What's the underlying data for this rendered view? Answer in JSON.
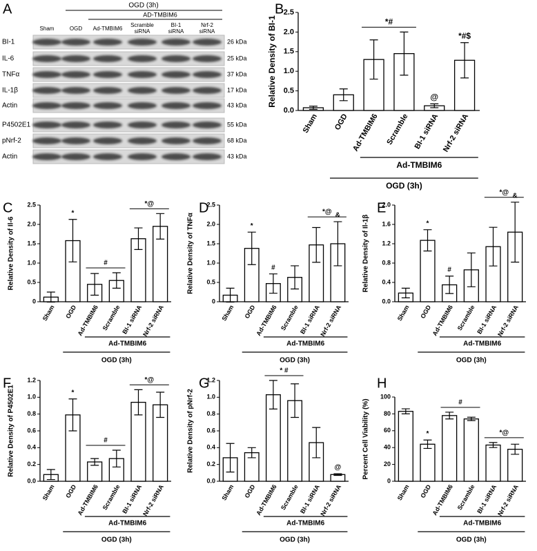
{
  "blot": {
    "panel_label": "A",
    "header": "OGD (3h)",
    "subheader": "AD-TMBIM6",
    "lanes": [
      [
        "Sham"
      ],
      [
        "OGD"
      ],
      [
        "Ad-TMBIM6"
      ],
      [
        "Scramble",
        "siRNA"
      ],
      [
        "BI-1",
        "siRNA"
      ],
      [
        "Nrf-2",
        "siRNA"
      ]
    ],
    "rows": [
      {
        "label": "BI-1",
        "size": "26 kDa"
      },
      {
        "label": "IL-6",
        "size": "25 kDa"
      },
      {
        "label": "TNFα",
        "size": "37 kDa"
      },
      {
        "label": "IL-1β",
        "size": "17 kDa"
      },
      {
        "label": "Actin",
        "size": "43 kDa"
      },
      {
        "label": "P4502E1",
        "size": "55 kDa"
      },
      {
        "label": "pNrf-2",
        "size": "68 kDa"
      },
      {
        "label": "Actin",
        "size": "43 kDa"
      }
    ]
  },
  "chart_data": [
    {
      "type": "bar",
      "panel_label": "B",
      "y_label": "Relative Density of BI-1",
      "categories": [
        "Sham",
        "OGD",
        "Ad-TMBIM6",
        "Scramble",
        "BI-1 siRNA",
        "Nrf-2 siRNA"
      ],
      "values": [
        0.07,
        0.4,
        1.3,
        1.45,
        0.12,
        1.28
      ],
      "errors": [
        0.04,
        0.15,
        0.5,
        0.55,
        0.05,
        0.45
      ],
      "ylim": [
        0,
        2.5
      ],
      "yticks": [
        {
          "value": 0,
          "label": "0.0"
        },
        0.5,
        {
          "value": 1,
          "label": "1.0"
        },
        1.5,
        {
          "value": 2,
          "label": "2.0"
        },
        2.5
      ],
      "annotations": [
        {
          "text": "*#",
          "span": [
            "Ad-TMBIM6",
            "Scramble"
          ]
        },
        {
          "text": "@",
          "span": [
            "BI-1 siRNA"
          ]
        },
        {
          "text": "*#$",
          "span": [
            "Nrf-2 siRNA"
          ]
        }
      ],
      "groups": [
        {
          "label": "Ad-TMBIM6",
          "span": [
            "Ad-TMBIM6",
            "Nrf-2 siRNA"
          ]
        },
        {
          "label": "OGD (3h)",
          "span": [
            "OGD",
            "Nrf-2 siRNA"
          ]
        }
      ]
    },
    {
      "type": "bar",
      "panel_label": "C",
      "y_label": "Relative Density of Il-6",
      "categories": [
        "Sham",
        "OGD",
        "Ad-TMBIM6",
        "Scramble",
        "BI-1 siRNA",
        "Nrf-2 siRNA"
      ],
      "values": [
        0.12,
        1.58,
        0.45,
        0.55,
        1.63,
        1.95
      ],
      "errors": [
        0.13,
        0.55,
        0.28,
        0.2,
        0.28,
        0.33
      ],
      "ylim": [
        0,
        2.5
      ],
      "yticks": [
        0,
        0.5,
        {
          "value": 1,
          "label": "1.0"
        },
        1.5,
        {
          "value": 2,
          "label": "2.0"
        },
        2.5
      ],
      "annotations": [
        {
          "text": "*",
          "span": [
            "OGD"
          ]
        },
        {
          "text": "#",
          "span": [
            "Ad-TMBIM6",
            "Scramble"
          ]
        },
        {
          "text": "*@",
          "span": [
            "BI-1 siRNA",
            "Nrf-2 siRNA"
          ]
        }
      ],
      "groups": [
        {
          "label": "Ad-TMBIM6",
          "span": [
            "Ad-TMBIM6",
            "Nrf-2 siRNA"
          ]
        },
        {
          "label": "OGD (3h)",
          "span": [
            "OGD",
            "Nrf-2 siRNA"
          ]
        }
      ]
    },
    {
      "type": "bar",
      "panel_label": "D",
      "y_label": "Relative Density of TNFα",
      "categories": [
        "Sham",
        "OGD",
        "Ad-TMBIM6",
        "Scramble",
        "BI-1 siRNA",
        "Nrf-2 siRNA"
      ],
      "values": [
        0.17,
        1.38,
        0.47,
        0.63,
        1.47,
        1.5
      ],
      "errors": [
        0.18,
        0.42,
        0.25,
        0.3,
        0.45,
        0.57
      ],
      "ylim": [
        0,
        2.5
      ],
      "yticks": [
        0,
        0.5,
        {
          "value": 1,
          "label": "1.0"
        },
        1.5,
        {
          "value": 2,
          "label": "2.0"
        },
        2.5
      ],
      "annotations": [
        {
          "text": "*",
          "span": [
            "OGD"
          ]
        },
        {
          "text": "#",
          "span": [
            "Ad-TMBIM6"
          ]
        },
        {
          "text": "*@",
          "span": [
            "BI-1 siRNA",
            "Nrf-2 siRNA"
          ]
        },
        {
          "text": "&",
          "span": [
            "Nrf-2 siRNA"
          ]
        }
      ],
      "groups": [
        {
          "label": "Ad-TMBIM6",
          "span": [
            "Ad-TMBIM6",
            "Nrf-2 siRNA"
          ]
        },
        {
          "label": "OGD (3h)",
          "span": [
            "OGD",
            "Nrf-2 siRNA"
          ]
        }
      ]
    },
    {
      "type": "bar",
      "panel_label": "E",
      "y_label": "Relative Density of Il-1β",
      "categories": [
        "Sham",
        "OGD",
        "Ad-TMBIM6",
        "Scramble",
        "BI-1 siRNA",
        "Nrf-2 siRNA"
      ],
      "values": [
        0.18,
        1.27,
        0.35,
        0.66,
        1.14,
        1.44
      ],
      "errors": [
        0.1,
        0.22,
        0.18,
        0.35,
        0.4,
        0.62
      ],
      "ylim": [
        0,
        2
      ],
      "yticks": [
        {
          "value": 0,
          "label": "0.0"
        },
        0.4,
        0.8,
        1.2,
        1.6,
        {
          "value": 2,
          "label": "2.0"
        }
      ],
      "annotations": [
        {
          "text": "*",
          "span": [
            "OGD"
          ]
        },
        {
          "text": "#",
          "span": [
            "Ad-TMBIM6"
          ]
        },
        {
          "text": "*@",
          "span": [
            "BI-1 siRNA",
            "Nrf-2 siRNA"
          ]
        },
        {
          "text": "&",
          "span": [
            "Nrf-2 siRNA"
          ]
        }
      ],
      "groups": [
        {
          "label": "Ad-TMBIM6",
          "span": [
            "Ad-TMBIM6",
            "Nrf-2 siRNA"
          ]
        },
        {
          "label": "OGD (3h)",
          "span": [
            "OGD",
            "Nrf-2 siRNA"
          ]
        }
      ]
    },
    {
      "type": "bar",
      "panel_label": "F",
      "y_label": "Relative Density of P4502E1",
      "categories": [
        "Sham",
        "OGD",
        "Ad-TMBIM6",
        "Scramble",
        "BI-1 siRNA",
        "Nrf-2 siRNA"
      ],
      "values": [
        0.08,
        0.79,
        0.23,
        0.27,
        0.94,
        0.91
      ],
      "errors": [
        0.06,
        0.19,
        0.04,
        0.1,
        0.15,
        0.15
      ],
      "ylim": [
        0,
        1.2
      ],
      "yticks": [
        {
          "value": 0,
          "label": "0.0"
        },
        0.2,
        0.4,
        0.6,
        0.8,
        {
          "value": 1,
          "label": "1.0"
        },
        1.2
      ],
      "annotations": [
        {
          "text": "*",
          "span": [
            "OGD"
          ]
        },
        {
          "text": "#",
          "span": [
            "Ad-TMBIM6",
            "Scramble"
          ]
        },
        {
          "text": "*@",
          "span": [
            "BI-1 siRNA",
            "Nrf-2 siRNA"
          ]
        }
      ],
      "groups": [
        {
          "label": "Ad-TMBIM6",
          "span": [
            "Ad-TMBIM6",
            "Nrf-2 siRNA"
          ]
        },
        {
          "label": "OGD (3h)",
          "span": [
            "OGD",
            "Nrf-2 siRNA"
          ]
        }
      ]
    },
    {
      "type": "bar",
      "panel_label": "G",
      "y_label": "Relative Density of pNrf-2",
      "categories": [
        "Sham",
        "OGD",
        "Ad-TMBIM6",
        "Scramble",
        "BI-1 siRNA",
        "Nrf-2 siRNA"
      ],
      "values": [
        0.28,
        0.34,
        1.03,
        0.96,
        0.46,
        0.08
      ],
      "errors": [
        0.17,
        0.06,
        0.17,
        0.2,
        0.18,
        0.01
      ],
      "ylim": [
        0,
        1.2
      ],
      "yticks": [
        {
          "value": 0,
          "label": "0.0"
        },
        0.2,
        0.4,
        0.6,
        0.8,
        {
          "value": 1,
          "label": "1.0"
        },
        1.2
      ],
      "annotations": [
        {
          "text": "* #",
          "span": [
            "Ad-TMBIM6",
            "Scramble"
          ]
        },
        {
          "text": "@",
          "span": [
            "Nrf-2 siRNA"
          ]
        }
      ],
      "groups": [
        {
          "label": "Ad-TMBIM6",
          "span": [
            "Ad-TMBIM6",
            "Nrf-2 siRNA"
          ]
        },
        {
          "label": "OGD (3h)",
          "span": [
            "OGD",
            "Nrf-2 siRNA"
          ]
        }
      ]
    },
    {
      "type": "bar",
      "panel_label": "H",
      "y_label": "Percent Cell Viability (%)",
      "categories": [
        "Sham",
        "OGD",
        "Ad-TMBIM6",
        "Scramble",
        "BI-1 siRNA",
        "Nrf-2 siRNA"
      ],
      "values": [
        83,
        44,
        78,
        74,
        43,
        38
      ],
      "errors": [
        3,
        5,
        4,
        2,
        3,
        6
      ],
      "ylim": [
        0,
        100
      ],
      "yticks": [
        0,
        20,
        40,
        60,
        80,
        100
      ],
      "annotations": [
        {
          "text": "*",
          "span": [
            "OGD"
          ]
        },
        {
          "text": "#",
          "span": [
            "Ad-TMBIM6",
            "Scramble"
          ]
        },
        {
          "text": "*@",
          "span": [
            "BI-1 siRNA",
            "Nrf-2 siRNA"
          ]
        }
      ],
      "groups": [
        {
          "label": "Ad-TMBIM6",
          "span": [
            "Ad-TMBIM6",
            "Nrf-2 siRNA"
          ]
        },
        {
          "label": "OGD (3h)",
          "span": [
            "OGD",
            "Nrf-2 siRNA"
          ]
        }
      ]
    }
  ]
}
